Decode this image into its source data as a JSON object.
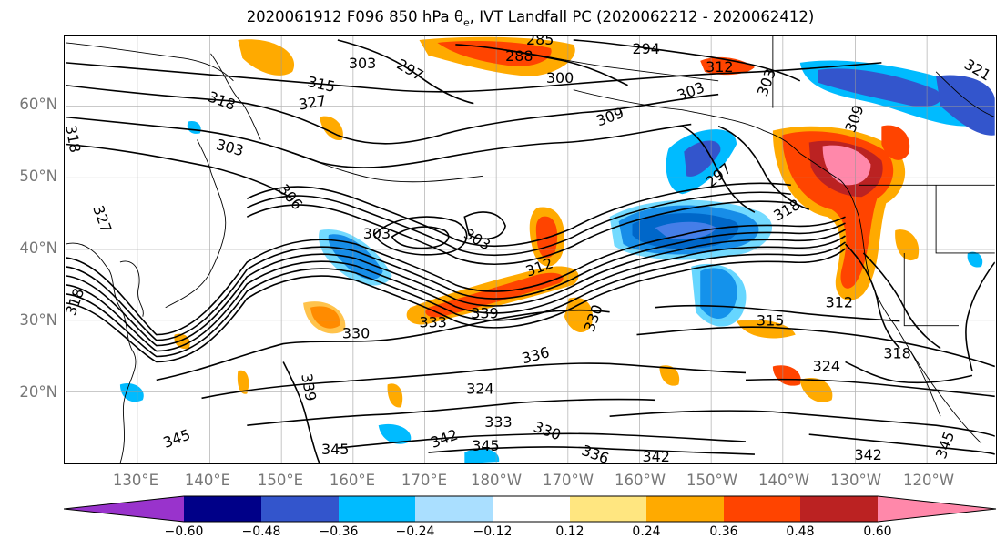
{
  "title": {
    "prefix": "2020061912 F096 850 hPa θ",
    "subscript": "e",
    "suffix": ", IVT Landfall PC (2020062212 - 2020062412)"
  },
  "axes": {
    "lat_labels": [
      "60°N",
      "50°N",
      "40°N",
      "30°N",
      "20°N"
    ],
    "lon_labels": [
      "130°E",
      "140°E",
      "150°E",
      "160°E",
      "170°E",
      "180°W",
      "170°W",
      "160°W",
      "150°W",
      "140°W",
      "130°W",
      "120°W"
    ]
  },
  "colorbar": {
    "colors": [
      "#9933cc",
      "#000088",
      "#3355cc",
      "#00bbff",
      "#aadfff",
      "#ffffff",
      "#ffe680",
      "#ffaa00",
      "#ff4400",
      "#bb2222",
      "#ff88aa"
    ],
    "tick_labels": [
      "−0.60",
      "−0.48",
      "−0.36",
      "−0.24",
      "−0.12",
      "0.12",
      "0.24",
      "0.36",
      "0.48",
      "0.60"
    ]
  },
  "contour_labels": [
    {
      "text": "285"
    },
    {
      "text": "288"
    },
    {
      "text": "294"
    },
    {
      "text": "297"
    },
    {
      "text": "303"
    },
    {
      "text": "300"
    },
    {
      "text": "315"
    },
    {
      "text": "312"
    },
    {
      "text": "318"
    },
    {
      "text": "327"
    },
    {
      "text": "303"
    },
    {
      "text": "303"
    },
    {
      "text": "309"
    },
    {
      "text": "303"
    },
    {
      "text": "297"
    },
    {
      "text": "309"
    },
    {
      "text": "318"
    },
    {
      "text": "306"
    },
    {
      "text": "303"
    },
    {
      "text": "303"
    },
    {
      "text": "312"
    },
    {
      "text": "318"
    },
    {
      "text": "312"
    },
    {
      "text": "315"
    },
    {
      "text": "330"
    },
    {
      "text": "333"
    },
    {
      "text": "339"
    },
    {
      "text": "330"
    },
    {
      "text": "318"
    },
    {
      "text": "336"
    },
    {
      "text": "324"
    },
    {
      "text": "324"
    },
    {
      "text": "339"
    },
    {
      "text": "333"
    },
    {
      "text": "330"
    },
    {
      "text": "345"
    },
    {
      "text": "345"
    },
    {
      "text": "342"
    },
    {
      "text": "345"
    },
    {
      "text": "336"
    },
    {
      "text": "342"
    },
    {
      "text": "342"
    },
    {
      "text": "345"
    },
    {
      "text": "318"
    },
    {
      "text": "327"
    },
    {
      "text": "321"
    }
  ]
}
